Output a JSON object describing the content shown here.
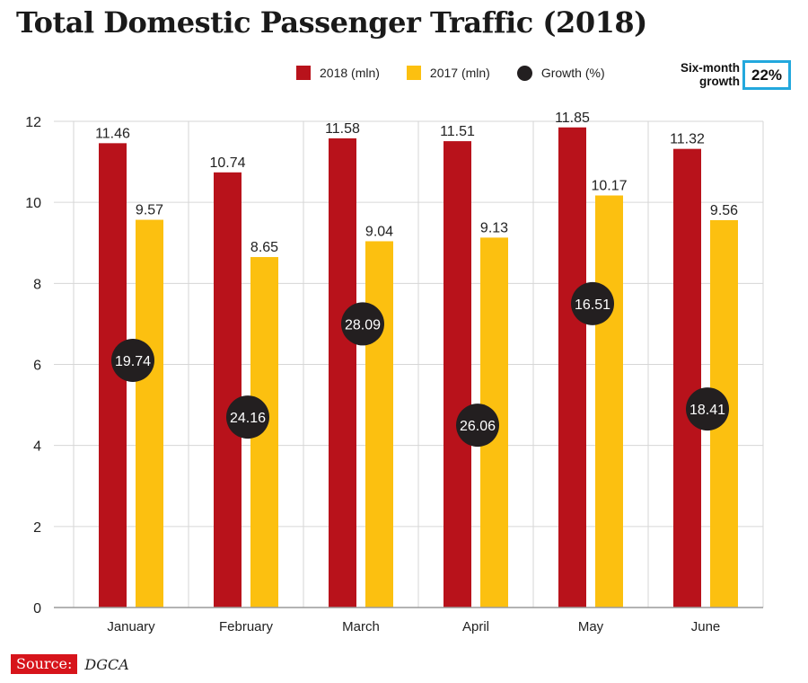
{
  "title": "Total Domestic Passenger Traffic (2018)",
  "legend": {
    "s2018": "2018 (mln)",
    "s2017": "2017 (mln)",
    "growth": "Growth (%)"
  },
  "six_month": {
    "label_line1": "Six-month",
    "label_line2": "growth",
    "value": "22%"
  },
  "source": {
    "label": "Source:",
    "value": "DGCA"
  },
  "colors": {
    "s2018": "#b8121b",
    "s2017": "#fcc010",
    "growth": "#231f20",
    "grid": "#d6d6d6",
    "box_border": "#23a8dd"
  },
  "chart_data": {
    "type": "bar",
    "title": "Total Domestic Passenger Traffic (2018)",
    "categories": [
      "January",
      "February",
      "March",
      "April",
      "May",
      "June"
    ],
    "series": [
      {
        "name": "2018 (mln)",
        "values": [
          11.46,
          10.74,
          11.58,
          11.51,
          11.85,
          11.32
        ],
        "labels": [
          "11.46",
          "10.74",
          "11.58",
          "11.51",
          "11.85",
          "11.32"
        ]
      },
      {
        "name": "2017 (mln)",
        "values": [
          9.57,
          8.65,
          9.04,
          9.13,
          10.17,
          9.56
        ],
        "labels": [
          "9.57",
          "8.65",
          "9.04",
          "9.13",
          "10.17",
          "9.56"
        ]
      }
    ],
    "growth": {
      "name": "Growth (%)",
      "values": [
        19.74,
        24.16,
        28.09,
        26.06,
        16.51,
        18.41
      ],
      "labels": [
        "19.74",
        "24.16",
        "28.09",
        "26.06",
        "16.51",
        "18.41"
      ],
      "display_level": [
        6.1,
        4.7,
        7.0,
        4.5,
        7.5,
        4.9
      ]
    },
    "y_ticks": [
      0,
      2,
      4,
      6,
      8,
      10,
      12
    ],
    "ylim": [
      0,
      12
    ],
    "grid": true,
    "legend_position": "top-right",
    "xlabel": "",
    "ylabel": ""
  }
}
